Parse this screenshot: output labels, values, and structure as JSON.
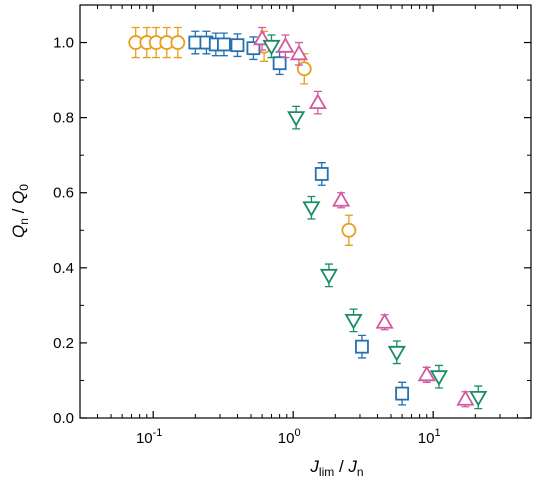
{
  "chart_data": {
    "type": "scatter",
    "xlabel": {
      "main": "J",
      "sub": "lim",
      "sep": " / ",
      "main2": "J",
      "sub2": "n"
    },
    "ylabel": {
      "main": "Q",
      "sub": "n",
      "sep": " / ",
      "main2": "Q",
      "sub2": "0"
    },
    "xscale": "log",
    "xlim": [
      0.03,
      50
    ],
    "ylim": [
      0.0,
      1.1
    ],
    "grid": false,
    "x_ticks": [
      {
        "value": 0.1,
        "base": "10",
        "exp": "-1"
      },
      {
        "value": 1,
        "base": "10",
        "exp": "0"
      },
      {
        "value": 10,
        "base": "10",
        "exp": "1"
      }
    ],
    "y_ticks": [
      {
        "value": 0.0,
        "label": "0.0"
      },
      {
        "value": 0.2,
        "label": "0.2"
      },
      {
        "value": 0.4,
        "label": "0.4"
      },
      {
        "value": 0.6,
        "label": "0.6"
      },
      {
        "value": 0.8,
        "label": "0.8"
      },
      {
        "value": 1.0,
        "label": "1.0"
      }
    ],
    "series": [
      {
        "marker": "circle",
        "color": "#E69F1C",
        "points": [
          {
            "x": 0.075,
            "y": 1.0,
            "err": 0.04
          },
          {
            "x": 0.09,
            "y": 1.0,
            "err": 0.04
          },
          {
            "x": 0.105,
            "y": 1.0,
            "err": 0.04
          },
          {
            "x": 0.125,
            "y": 1.0,
            "err": 0.04
          },
          {
            "x": 0.15,
            "y": 1.0,
            "err": 0.04
          },
          {
            "x": 0.62,
            "y": 0.99,
            "err": 0.04
          },
          {
            "x": 1.2,
            "y": 0.93,
            "err": 0.04
          },
          {
            "x": 2.5,
            "y": 0.5,
            "err": 0.04
          }
        ]
      },
      {
        "marker": "square",
        "color": "#2470B0",
        "points": [
          {
            "x": 0.2,
            "y": 1.0,
            "err": 0.03
          },
          {
            "x": 0.24,
            "y": 1.0,
            "err": 0.03
          },
          {
            "x": 0.28,
            "y": 0.995,
            "err": 0.03
          },
          {
            "x": 0.32,
            "y": 0.995,
            "err": 0.03
          },
          {
            "x": 0.4,
            "y": 0.993,
            "err": 0.03
          },
          {
            "x": 0.52,
            "y": 0.985,
            "err": 0.03
          },
          {
            "x": 0.8,
            "y": 0.945,
            "err": 0.03
          },
          {
            "x": 1.6,
            "y": 0.65,
            "err": 0.03
          },
          {
            "x": 3.1,
            "y": 0.19,
            "err": 0.03
          },
          {
            "x": 6.0,
            "y": 0.065,
            "err": 0.03
          }
        ]
      },
      {
        "marker": "triangle-up",
        "color": "#D459A0",
        "points": [
          {
            "x": 0.6,
            "y": 1.01,
            "err": 0.03
          },
          {
            "x": 0.88,
            "y": 0.99,
            "err": 0.03
          },
          {
            "x": 1.1,
            "y": 0.97,
            "err": 0.03
          },
          {
            "x": 1.5,
            "y": 0.84,
            "err": 0.03
          },
          {
            "x": 2.2,
            "y": 0.58,
            "err": 0.02
          },
          {
            "x": 4.5,
            "y": 0.255,
            "err": 0.02
          },
          {
            "x": 9.0,
            "y": 0.115,
            "err": 0.02
          },
          {
            "x": 17.0,
            "y": 0.05,
            "err": 0.02
          }
        ]
      },
      {
        "marker": "triangle-down",
        "color": "#1A8C66",
        "points": [
          {
            "x": 0.7,
            "y": 0.99,
            "err": 0.03
          },
          {
            "x": 1.05,
            "y": 0.8,
            "err": 0.03
          },
          {
            "x": 1.35,
            "y": 0.56,
            "err": 0.03
          },
          {
            "x": 1.8,
            "y": 0.38,
            "err": 0.03
          },
          {
            "x": 2.7,
            "y": 0.26,
            "err": 0.03
          },
          {
            "x": 5.5,
            "y": 0.175,
            "err": 0.03
          },
          {
            "x": 11.0,
            "y": 0.11,
            "err": 0.03
          },
          {
            "x": 21.0,
            "y": 0.055,
            "err": 0.03
          }
        ]
      }
    ]
  }
}
